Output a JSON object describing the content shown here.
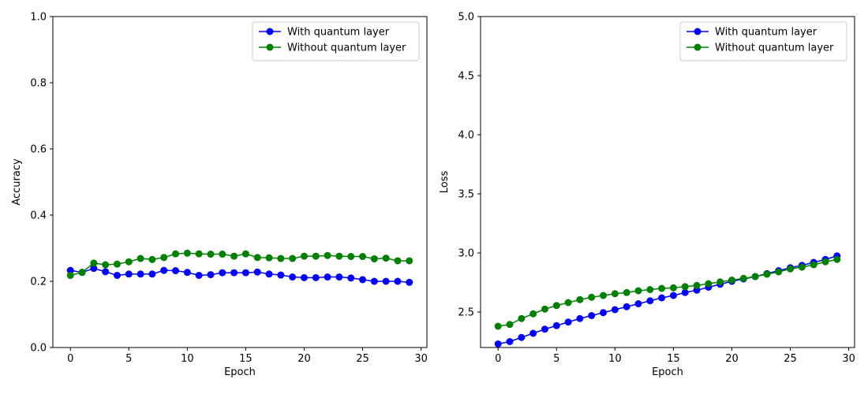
{
  "chart_data": [
    {
      "type": "line",
      "title": "",
      "xlabel": "Epoch",
      "ylabel": "Accuracy",
      "xlim": [
        -1.5,
        30.5
      ],
      "ylim": [
        0.0,
        1.0
      ],
      "xticks": [
        0,
        5,
        10,
        15,
        20,
        25,
        30
      ],
      "xtick_labels": [
        "0",
        "5",
        "10",
        "15",
        "20",
        "25",
        "30"
      ],
      "yticks": [
        0.0,
        0.2,
        0.4,
        0.6,
        0.8,
        1.0
      ],
      "ytick_labels": [
        "0.0",
        "0.2",
        "0.4",
        "0.6",
        "0.8",
        "1.0"
      ],
      "grid": false,
      "legend_position": "top-right",
      "x": [
        0,
        1,
        2,
        3,
        4,
        5,
        6,
        7,
        8,
        9,
        10,
        11,
        12,
        13,
        14,
        15,
        16,
        17,
        18,
        19,
        20,
        21,
        22,
        23,
        24,
        25,
        26,
        27,
        28,
        29
      ],
      "series": [
        {
          "name": "With quantum layer",
          "color": "#0000ff",
          "values": [
            0.233,
            0.227,
            0.239,
            0.229,
            0.218,
            0.222,
            0.222,
            0.222,
            0.233,
            0.232,
            0.227,
            0.218,
            0.22,
            0.226,
            0.226,
            0.226,
            0.228,
            0.222,
            0.219,
            0.213,
            0.211,
            0.211,
            0.213,
            0.213,
            0.21,
            0.205,
            0.2,
            0.2,
            0.2,
            0.197
          ]
        },
        {
          "name": "Without quantum layer",
          "color": "#008000",
          "values": [
            0.218,
            0.227,
            0.255,
            0.25,
            0.252,
            0.259,
            0.269,
            0.266,
            0.272,
            0.283,
            0.285,
            0.283,
            0.282,
            0.282,
            0.276,
            0.283,
            0.272,
            0.271,
            0.269,
            0.269,
            0.276,
            0.276,
            0.278,
            0.276,
            0.275,
            0.275,
            0.268,
            0.27,
            0.262,
            0.262
          ]
        }
      ]
    },
    {
      "type": "line",
      "title": "",
      "xlabel": "Epoch",
      "ylabel": "Loss",
      "xlim": [
        -1.5,
        30.5
      ],
      "ylim": [
        2.2,
        5.0
      ],
      "xticks": [
        0,
        5,
        10,
        15,
        20,
        25,
        30
      ],
      "xtick_labels": [
        "0",
        "5",
        "10",
        "15",
        "20",
        "25",
        "30"
      ],
      "yticks": [
        2.5,
        3.0,
        3.5,
        4.0,
        4.5,
        5.0
      ],
      "ytick_labels": [
        "2.5",
        "3.0",
        "3.5",
        "4.0",
        "4.5",
        "5.0"
      ],
      "grid": false,
      "legend_position": "top-right",
      "x": [
        0,
        1,
        2,
        3,
        4,
        5,
        6,
        7,
        8,
        9,
        10,
        11,
        12,
        13,
        14,
        15,
        16,
        17,
        18,
        19,
        20,
        21,
        22,
        23,
        24,
        25,
        26,
        27,
        28,
        29
      ],
      "series": [
        {
          "name": "With quantum layer",
          "color": "#0000ff",
          "values": [
            2.23,
            2.25,
            2.285,
            2.32,
            2.355,
            2.385,
            2.415,
            2.445,
            2.47,
            2.495,
            2.52,
            2.545,
            2.57,
            2.595,
            2.62,
            2.64,
            2.665,
            2.685,
            2.71,
            2.735,
            2.76,
            2.78,
            2.8,
            2.825,
            2.85,
            2.875,
            2.895,
            2.92,
            2.945,
            2.975
          ]
        },
        {
          "name": "Without quantum layer",
          "color": "#008000",
          "values": [
            2.38,
            2.395,
            2.445,
            2.485,
            2.525,
            2.555,
            2.58,
            2.605,
            2.625,
            2.64,
            2.655,
            2.665,
            2.68,
            2.69,
            2.7,
            2.705,
            2.715,
            2.725,
            2.74,
            2.755,
            2.77,
            2.785,
            2.8,
            2.82,
            2.84,
            2.865,
            2.88,
            2.9,
            2.925,
            2.945
          ]
        }
      ]
    }
  ]
}
